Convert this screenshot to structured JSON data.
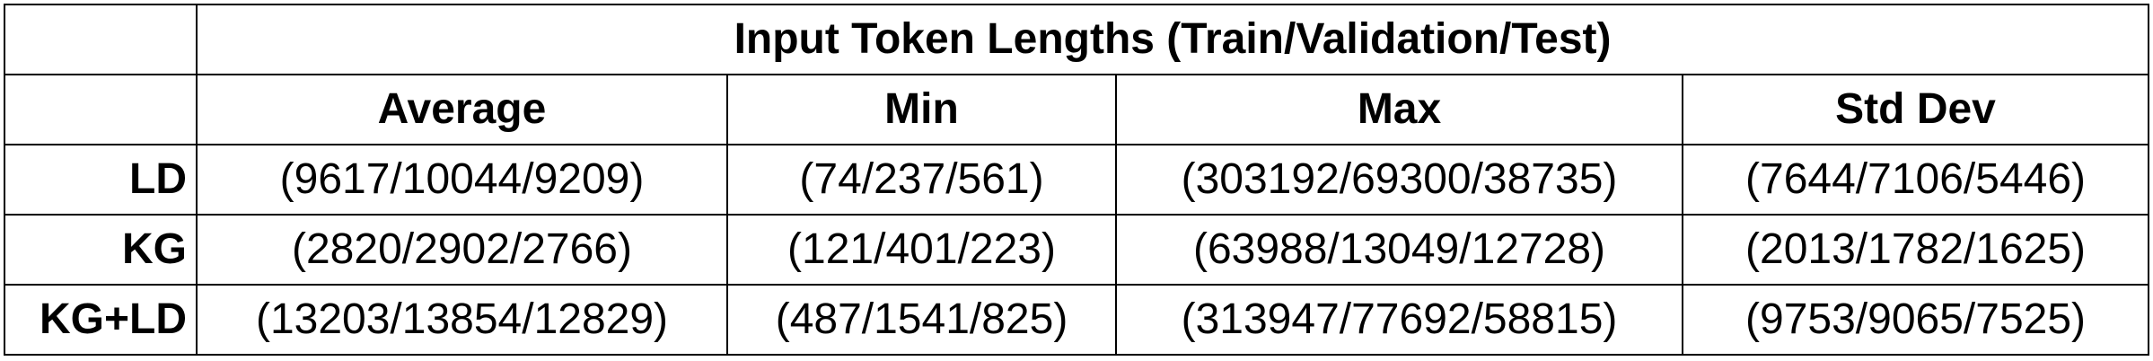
{
  "table": {
    "title": "Input Token Lengths (Train/Validation/Test)",
    "columns": [
      "Average",
      "Min",
      "Max",
      "Std Dev"
    ],
    "rows": [
      {
        "label": "LD",
        "values": [
          "(9617/10044/9209)",
          "(74/237/561)",
          "(303192/69300/38735)",
          "(7644/7106/5446)"
        ]
      },
      {
        "label": "KG",
        "values": [
          "(2820/2902/2766)",
          "(121/401/223)",
          "(63988/13049/12728)",
          "(2013/1782/1625)"
        ]
      },
      {
        "label": "KG+LD",
        "values": [
          "(13203/13854/12829)",
          "(487/1541/825)",
          "(313947/77692/58815)",
          "(9753/9065/7525)"
        ]
      }
    ]
  }
}
